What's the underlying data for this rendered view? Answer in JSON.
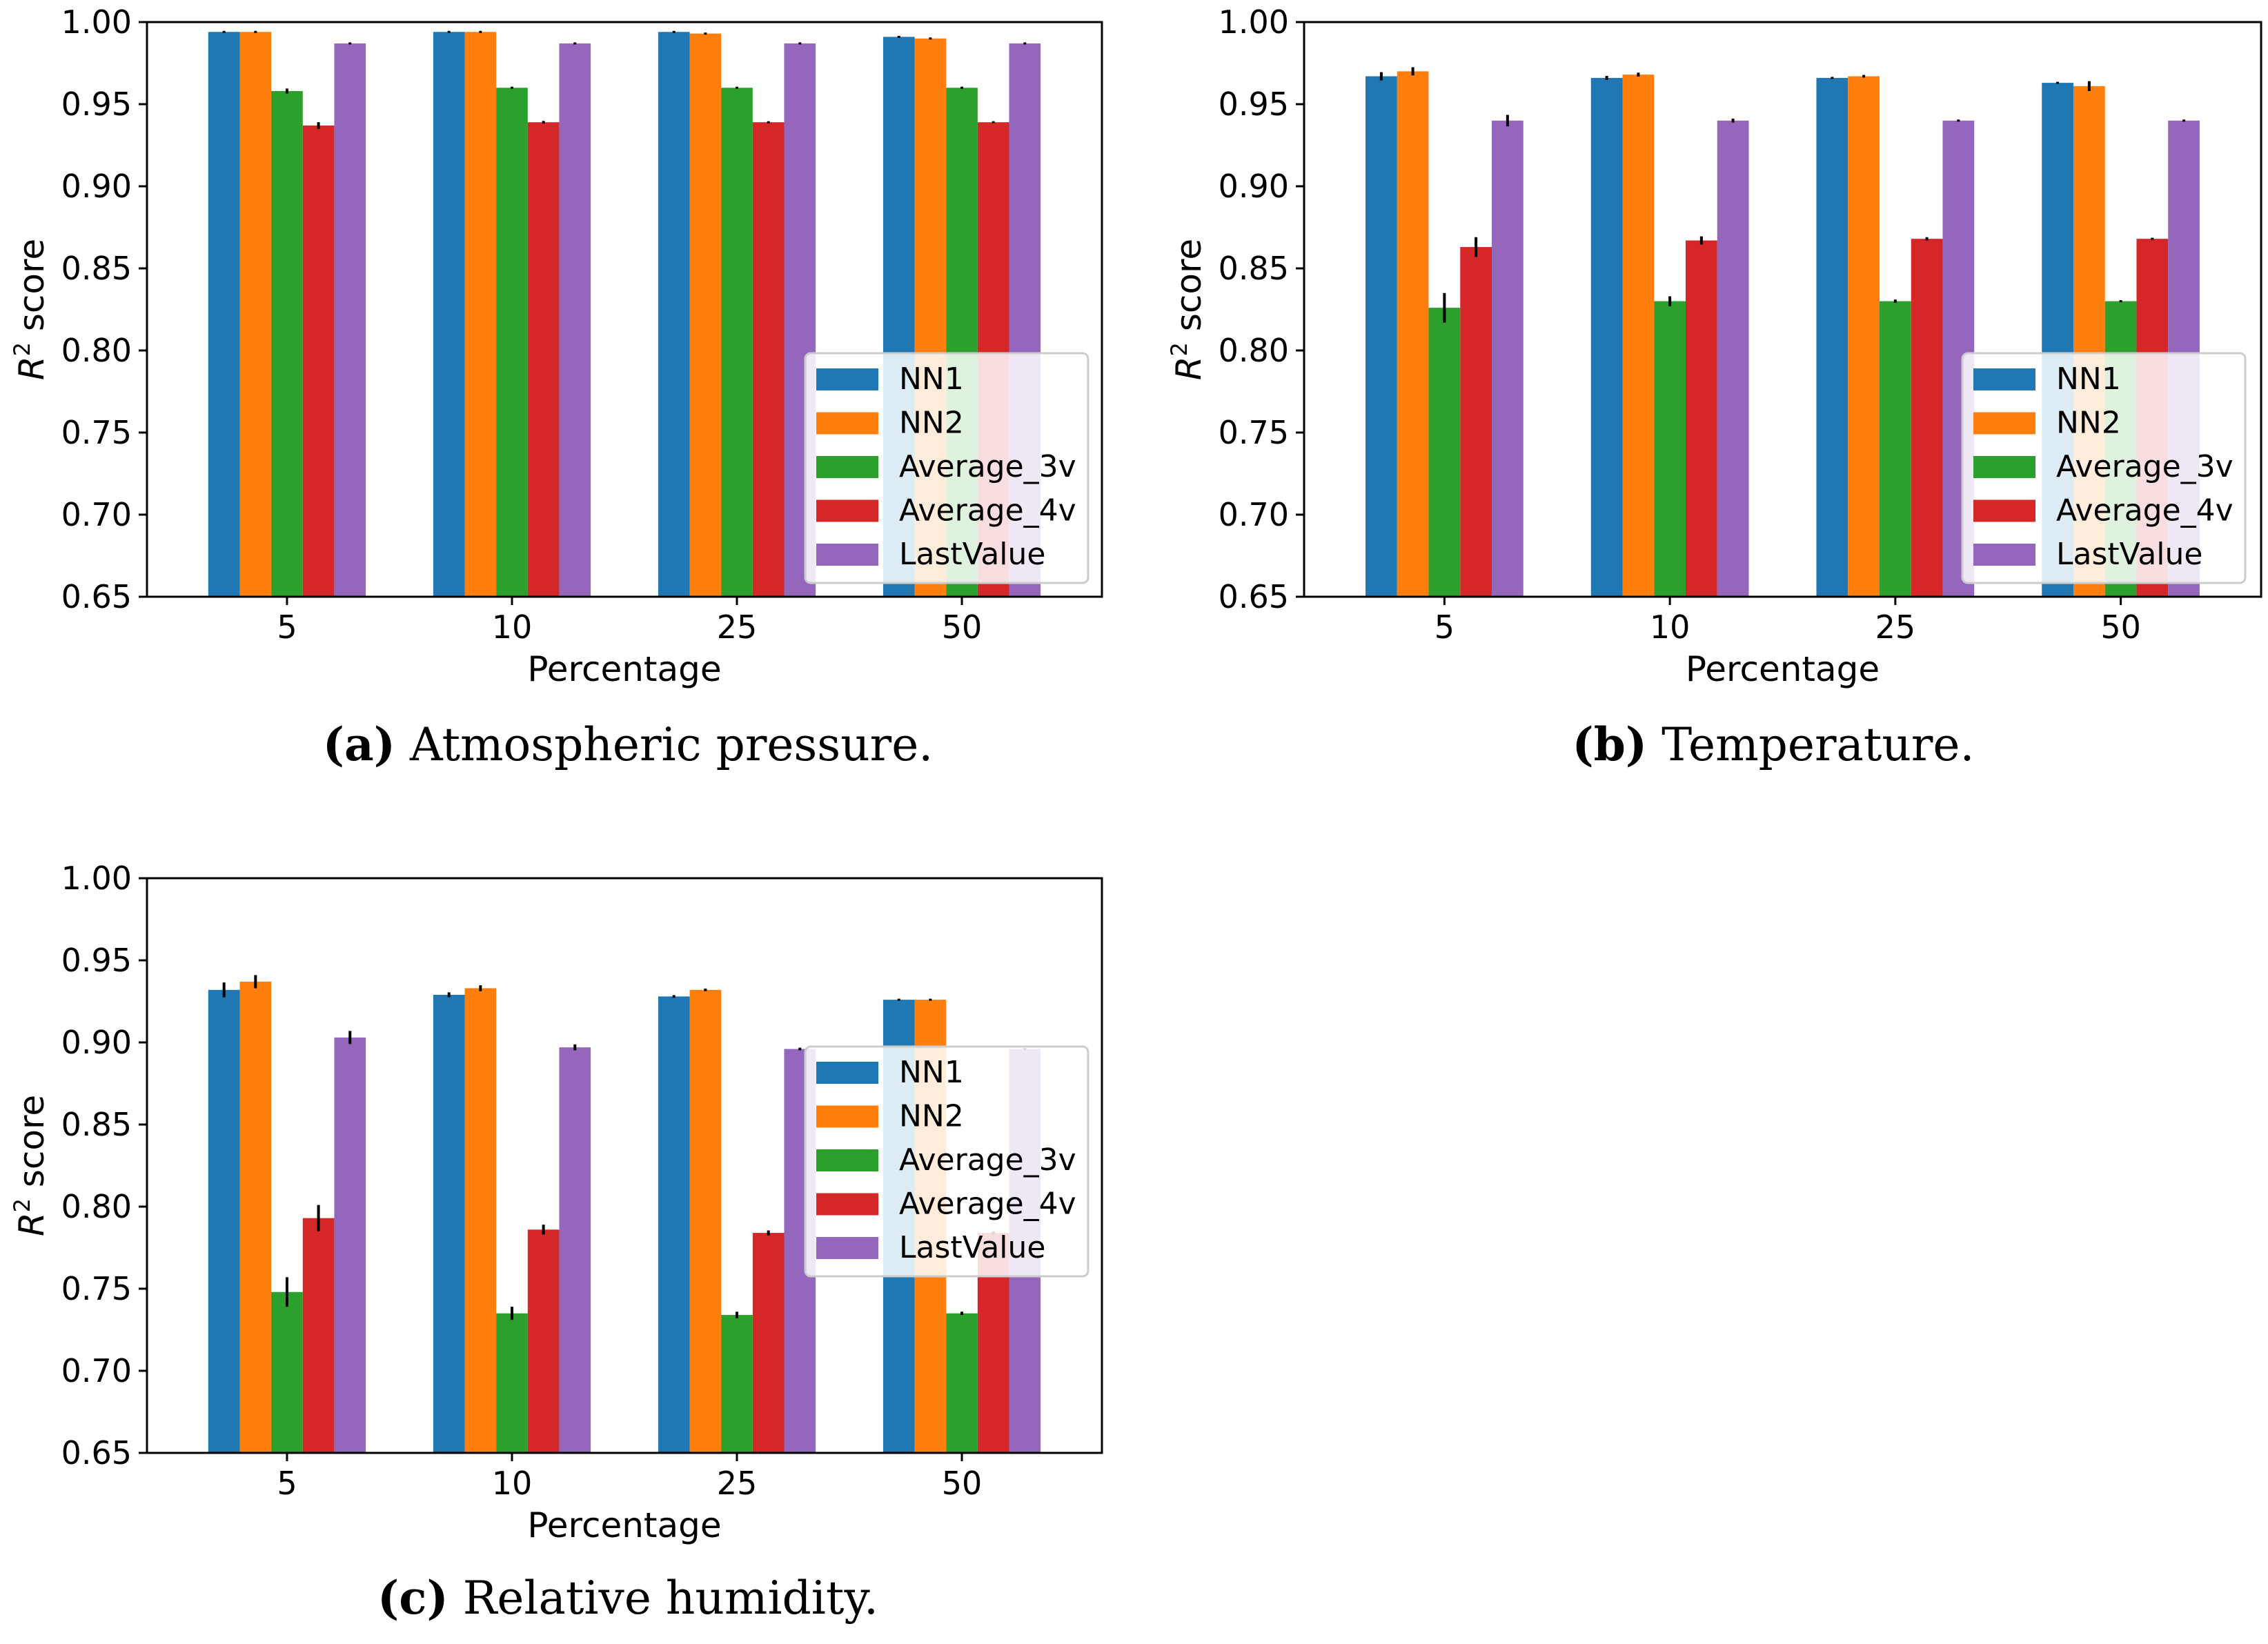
{
  "colors": {
    "NN1": "#1f77b4",
    "NN2": "#ff7f0e",
    "Average_3v": "#2ca02c",
    "Average_4v": "#d62728",
    "LastValue": "#9467bd"
  },
  "chart_data": [
    {
      "type": "bar",
      "panel": "a",
      "caption_letter": "(a)",
      "caption_text": "Atmospheric pressure.",
      "xlabel": "Percentage",
      "ylabel_main": "R",
      "ylabel_sup": "2",
      "ylabel_rest": " score",
      "ylim": [
        0.65,
        1.0
      ],
      "yticks": [
        "0.65",
        "0.70",
        "0.75",
        "0.80",
        "0.85",
        "0.90",
        "0.95",
        "1.00"
      ],
      "categories": [
        "5",
        "10",
        "25",
        "50"
      ],
      "legend_position": "lower-right",
      "series": [
        {
          "name": "NN1",
          "values": [
            0.994,
            0.994,
            0.994,
            0.991
          ],
          "errors": [
            0.0005,
            0.0004,
            0.0003,
            0.0004
          ]
        },
        {
          "name": "NN2",
          "values": [
            0.994,
            0.994,
            0.993,
            0.99
          ],
          "errors": [
            0.0006,
            0.0004,
            0.0005,
            0.0005
          ]
        },
        {
          "name": "Average_3v",
          "values": [
            0.958,
            0.96,
            0.96,
            0.96
          ],
          "errors": [
            0.0015,
            0.0006,
            0.0004,
            0.0003
          ]
        },
        {
          "name": "Average_4v",
          "values": [
            0.937,
            0.939,
            0.939,
            0.939
          ],
          "errors": [
            0.002,
            0.0008,
            0.0005,
            0.0003
          ]
        },
        {
          "name": "LastValue",
          "values": [
            0.987,
            0.987,
            0.987,
            0.987
          ],
          "errors": [
            0.0005,
            0.0003,
            0.0003,
            0.0003
          ]
        }
      ]
    },
    {
      "type": "bar",
      "panel": "b",
      "caption_letter": "(b)",
      "caption_text": "Temperature.",
      "xlabel": "Percentage",
      "ylabel_main": "R",
      "ylabel_sup": "2",
      "ylabel_rest": " score",
      "ylim": [
        0.65,
        1.0
      ],
      "yticks": [
        "0.65",
        "0.70",
        "0.75",
        "0.80",
        "0.85",
        "0.90",
        "0.95",
        "1.00"
      ],
      "categories": [
        "5",
        "10",
        "25",
        "50"
      ],
      "legend_position": "lower-right",
      "series": [
        {
          "name": "NN1",
          "values": [
            0.967,
            0.966,
            0.966,
            0.963
          ],
          "errors": [
            0.0025,
            0.0012,
            0.0006,
            0.0006
          ]
        },
        {
          "name": "NN2",
          "values": [
            0.97,
            0.968,
            0.967,
            0.961
          ],
          "errors": [
            0.0025,
            0.0012,
            0.0008,
            0.003
          ]
        },
        {
          "name": "Average_3v",
          "values": [
            0.826,
            0.83,
            0.83,
            0.83
          ],
          "errors": [
            0.009,
            0.003,
            0.001,
            0.0006
          ]
        },
        {
          "name": "Average_4v",
          "values": [
            0.863,
            0.867,
            0.868,
            0.868
          ],
          "errors": [
            0.006,
            0.0025,
            0.001,
            0.0006
          ]
        },
        {
          "name": "LastValue",
          "values": [
            0.94,
            0.94,
            0.94,
            0.94
          ],
          "errors": [
            0.0035,
            0.0012,
            0.0006,
            0.0004
          ]
        }
      ]
    },
    {
      "type": "bar",
      "panel": "c",
      "caption_letter": "(c)",
      "caption_text": "Relative humidity.",
      "xlabel": "Percentage",
      "ylabel_main": "R",
      "ylabel_sup": "2",
      "ylabel_rest": " score",
      "ylim": [
        0.65,
        1.0
      ],
      "yticks": [
        "0.65",
        "0.70",
        "0.75",
        "0.80",
        "0.85",
        "0.90",
        "0.95",
        "1.00"
      ],
      "categories": [
        "5",
        "10",
        "25",
        "50"
      ],
      "legend_position": "center-right",
      "series": [
        {
          "name": "NN1",
          "values": [
            0.932,
            0.929,
            0.928,
            0.926
          ],
          "errors": [
            0.0045,
            0.0015,
            0.0008,
            0.0005
          ]
        },
        {
          "name": "NN2",
          "values": [
            0.937,
            0.933,
            0.932,
            0.926
          ],
          "errors": [
            0.004,
            0.0018,
            0.0008,
            0.0005
          ]
        },
        {
          "name": "Average_3v",
          "values": [
            0.748,
            0.735,
            0.734,
            0.735
          ],
          "errors": [
            0.009,
            0.004,
            0.002,
            0.001
          ]
        },
        {
          "name": "Average_4v",
          "values": [
            0.793,
            0.786,
            0.784,
            0.784
          ],
          "errors": [
            0.008,
            0.003,
            0.0015,
            0.001
          ]
        },
        {
          "name": "LastValue",
          "values": [
            0.903,
            0.897,
            0.896,
            0.896
          ],
          "errors": [
            0.004,
            0.0018,
            0.0008,
            0.0005
          ]
        }
      ]
    }
  ]
}
